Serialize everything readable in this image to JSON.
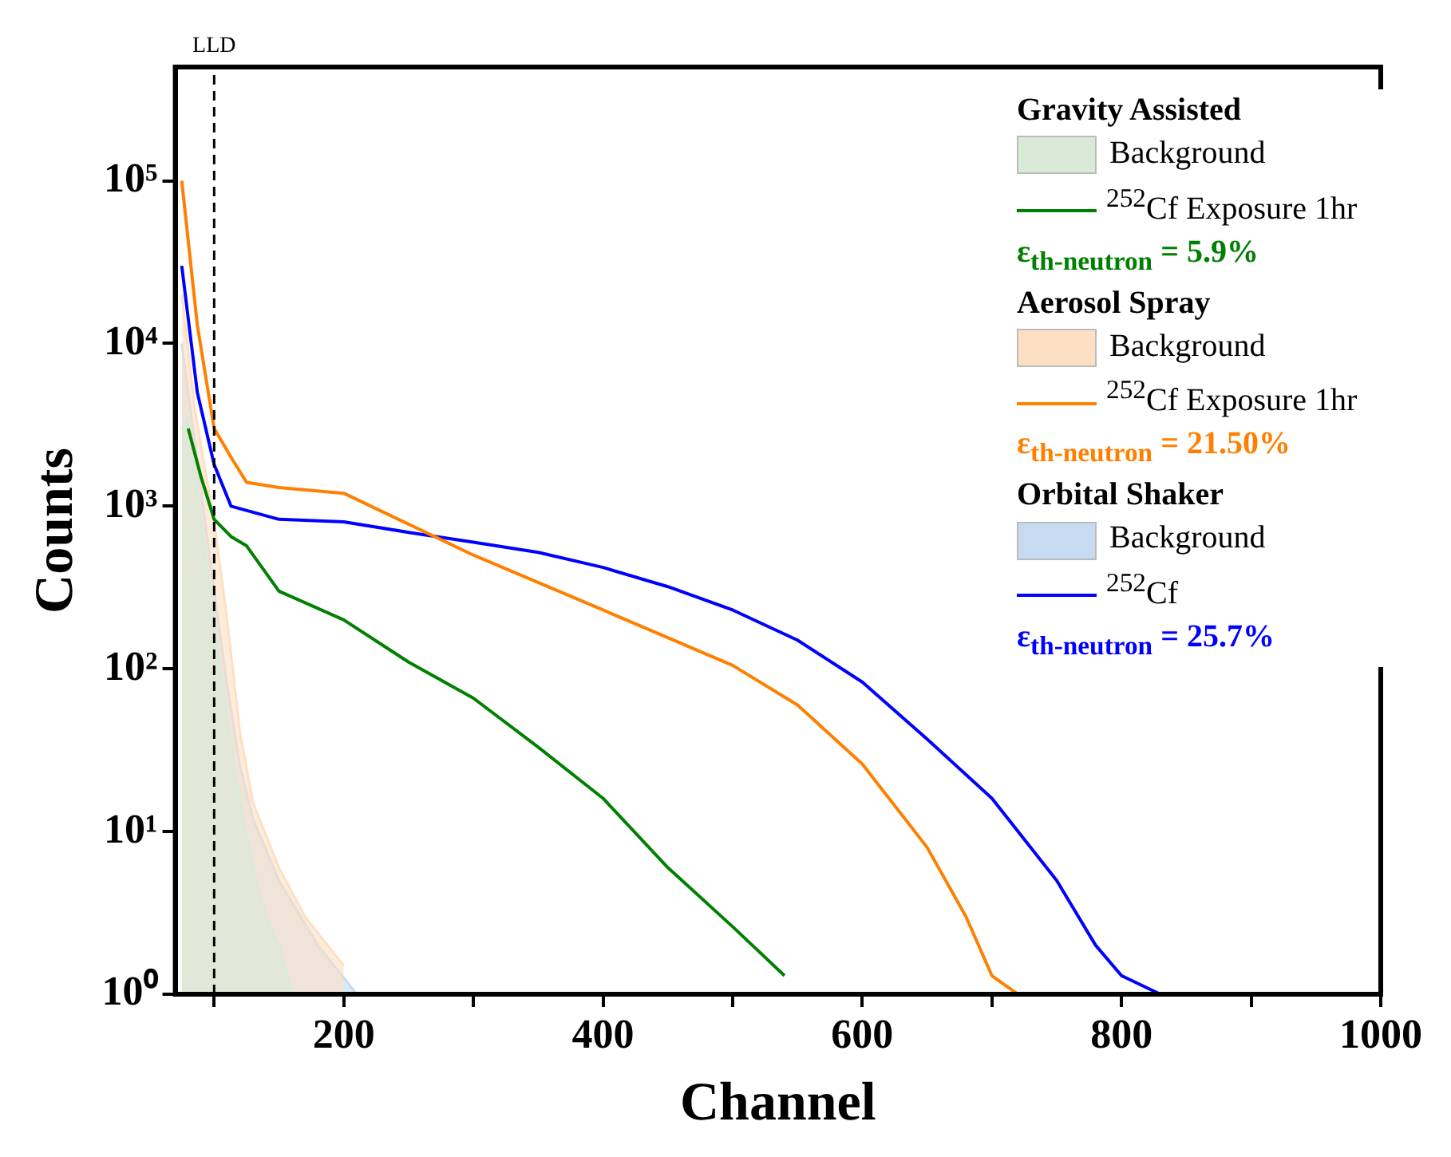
{
  "chart_data": {
    "type": "line",
    "xlabel": "Channel",
    "ylabel": "Counts",
    "xlim": [
      70,
      1000
    ],
    "xticks": [
      {
        "value": 100,
        "label": null
      },
      200,
      {
        "value": 300,
        "label": null
      },
      400,
      {
        "value": 500,
        "label": null
      },
      600,
      {
        "value": 700,
        "label": null
      },
      800,
      {
        "value": 900,
        "label": null
      },
      1000
    ],
    "log": "y",
    "ylim": [
      1,
      500000
    ],
    "yticks": [
      {
        "value": 1,
        "label": "10⁰"
      },
      {
        "value": 10,
        "label": "10¹"
      },
      {
        "value": 100,
        "label": "10²"
      },
      {
        "value": 1000,
        "label": "10³"
      },
      {
        "value": 10000,
        "label": "10⁴"
      },
      {
        "value": 100000,
        "label": "10⁵"
      }
    ],
    "legend": "top right",
    "annotations": [
      "Gravity Assisted",
      "ε$_{th-neutron}$ = 5.9%",
      "Aerosol Spray",
      "ε$_{th-neutron}$ = 21.50%",
      "Orbital Shaker",
      "ε$_{th-neutron}$ = 25.7%"
    ],
    "ref_lines": [
      {
        "axis": "x",
        "value": 100,
        "label": "LLD",
        "line_style": "dashed"
      }
    ],
    "series": [
      {
        "name": "Background",
        "type": "area",
        "color": "#d9ead9",
        "x": [
          75,
          80,
          90,
          100,
          110,
          120,
          130,
          140,
          150,
          160
        ],
        "values": [
          3000,
          3500,
          800,
          200,
          50,
          15,
          6,
          3,
          2,
          1
        ]
      },
      {
        "name": "$^{252}$Cf Exposure 1hr",
        "color": "#008000",
        "x": [
          80,
          90,
          100,
          113,
          125,
          150,
          200,
          250,
          300,
          350,
          400,
          450,
          500,
          540
        ],
        "values": [
          3000,
          1500,
          830,
          650,
          570,
          300,
          200,
          110,
          66,
          33,
          16,
          6,
          2.6,
          1.3
        ]
      },
      {
        "name": "Background",
        "type": "area",
        "color": "#fde0c3",
        "x": [
          75,
          85,
          100,
          110,
          120,
          130,
          150,
          170,
          200
        ],
        "values": [
          20000,
          4000,
          800,
          200,
          40,
          15,
          6,
          3,
          1.5
        ]
      },
      {
        "name": "$^{252}$Cf Exposure 1hr",
        "color": "#ff8000",
        "x": [
          75,
          87,
          100,
          113,
          125,
          150,
          200,
          300,
          400,
          500,
          550,
          600,
          650,
          680,
          700,
          720
        ],
        "values": [
          100000,
          13000,
          3000,
          2000,
          1400,
          1300,
          1200,
          500,
          230,
          105,
          60,
          26,
          8,
          3,
          1.3,
          1
        ]
      },
      {
        "name": "Background",
        "type": "area",
        "color": "#c6daf2",
        "x": [
          75,
          85,
          100,
          110,
          120,
          130,
          150,
          180,
          210
        ],
        "values": [
          10000,
          2500,
          300,
          80,
          25,
          12,
          5,
          2,
          1
        ]
      },
      {
        "name": "$^{252}$Cf",
        "color": "#0000ff",
        "x": [
          75,
          87,
          100,
          113,
          150,
          200,
          250,
          300,
          350,
          400,
          450,
          500,
          550,
          600,
          650,
          700,
          750,
          780,
          800,
          830
        ],
        "values": [
          30000,
          5000,
          1800,
          1000,
          830,
          800,
          690,
          600,
          520,
          420,
          320,
          230,
          150,
          83,
          37,
          16,
          5,
          2,
          1.3,
          1
        ]
      }
    ]
  }
}
